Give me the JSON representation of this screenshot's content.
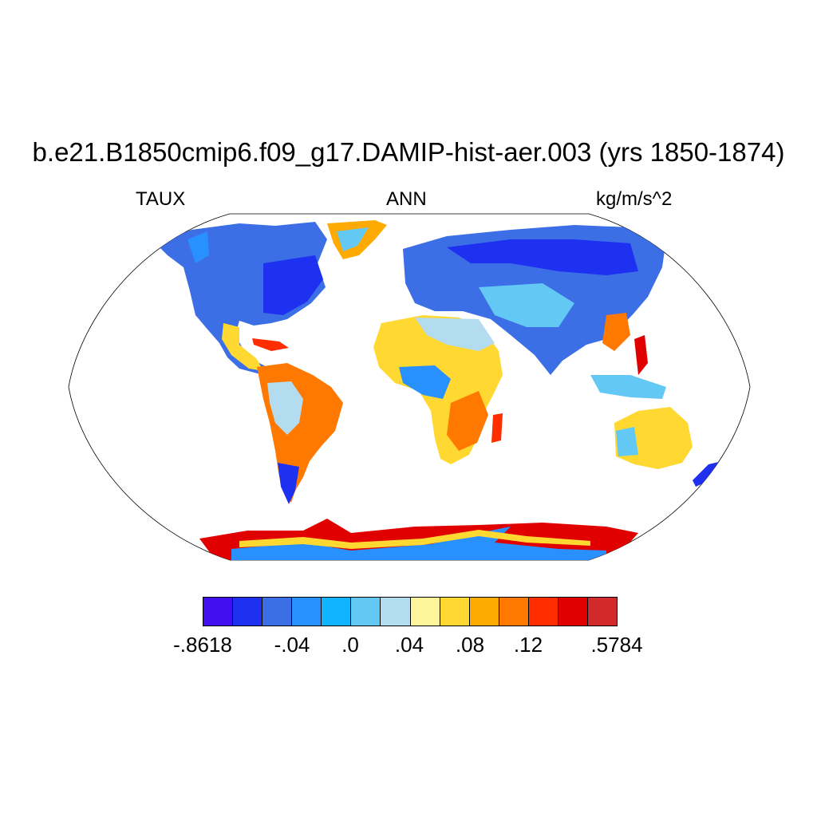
{
  "title": "b.e21.B1850cmip6.f09_g17.DAMIP-hist-aer.003 (yrs 1850-1874)",
  "left_label": "TAUX",
  "center_label": "ANN",
  "right_label": "kg/m/s^2",
  "map": {
    "projection": "robinson",
    "field": "TAUX",
    "ocean_masked": true,
    "land_color_scale": "blue-to-red"
  },
  "colorbar": {
    "colors": [
      "#4010f0",
      "#1e30f0",
      "#3c6ee6",
      "#2890ff",
      "#10b4ff",
      "#64c8f4",
      "#b4dcf0",
      "#fff59a",
      "#ffd832",
      "#ffaa00",
      "#ff7800",
      "#ff2d00",
      "#e00000",
      "#d22a2a"
    ],
    "labels": [
      {
        "text": "-.8618",
        "boundary": 0
      },
      {
        "text": "-.04",
        "boundary": 2
      },
      {
        "text": ".0",
        "boundary": 3.2
      },
      {
        "text": ".04",
        "boundary": 4.4
      },
      {
        "text": ".08",
        "boundary": 6
      },
      {
        "text": ".12",
        "boundary": 7.4
      },
      {
        "text": ".5784",
        "boundary": 9.8
      }
    ]
  }
}
